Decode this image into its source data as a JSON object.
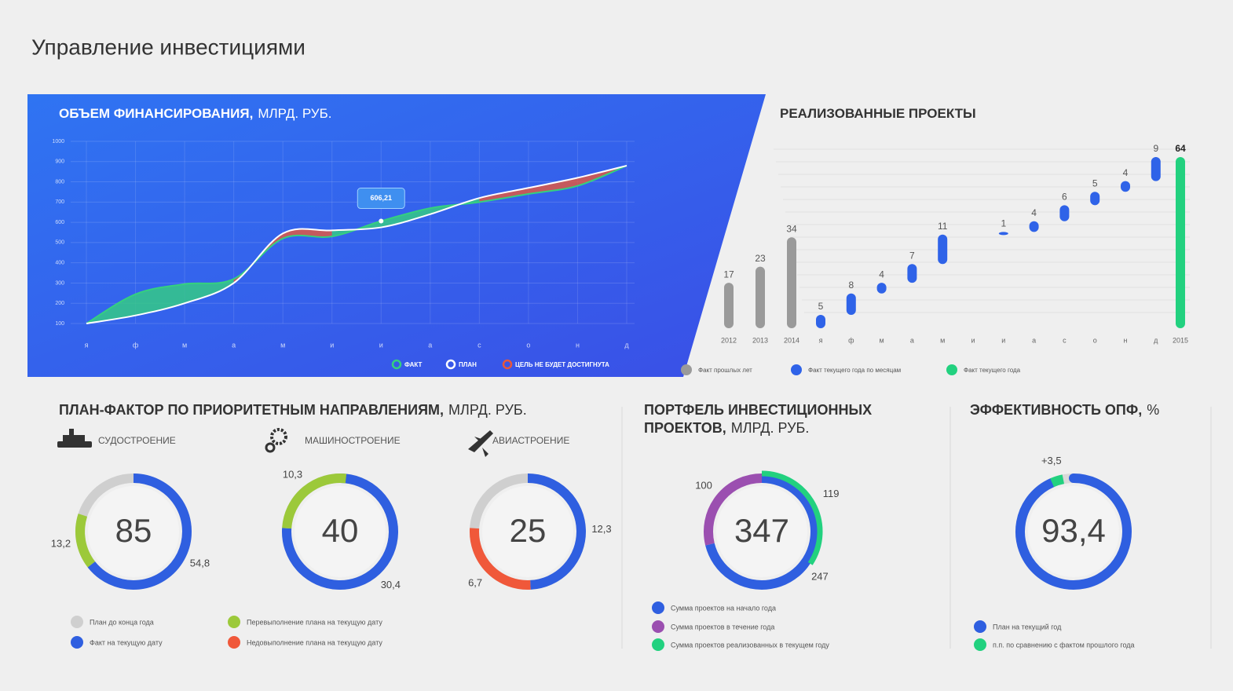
{
  "title": "Управление инвестициями",
  "chart_data": [
    {
      "type": "line",
      "title": "ОБЪЕМ ФИНАНСИРОВАНИЯ,",
      "title_unit": "МЛРД. РУБ.",
      "categories": [
        "я",
        "ф",
        "м",
        "а",
        "м",
        "и",
        "и",
        "а",
        "с",
        "о",
        "н",
        "д"
      ],
      "series": [
        {
          "name": "ФАКТ",
          "color": "#35d07f",
          "values": [
            100,
            245,
            295,
            320,
            520,
            530,
            606.21,
            670,
            700,
            740,
            780,
            880
          ]
        },
        {
          "name": "ПЛАН",
          "color": "#ffffff",
          "values": [
            100,
            140,
            200,
            300,
            545,
            560,
            575,
            640,
            720,
            770,
            820,
            880
          ]
        }
      ],
      "shortfall": {
        "name": "ЦЕЛЬ НЕ БУДЕТ ДОСТИГНУТА",
        "color": "#e8573a"
      },
      "annotation": "606,21",
      "ylim": [
        100,
        1000
      ],
      "yticks": [
        100,
        200,
        300,
        400,
        500,
        600,
        700,
        800,
        900,
        1000
      ],
      "grid": true
    },
    {
      "type": "bar",
      "title": "РЕАЛИЗОВАННЫЕ ПРОЕКТЫ",
      "categories": [
        "2012",
        "2013",
        "2014",
        "я",
        "ф",
        "м",
        "а",
        "м",
        "и",
        "и",
        "а",
        "с",
        "о",
        "н",
        "д",
        "2015"
      ],
      "series": [
        {
          "name": "Факт прошлых лет",
          "color": "#9a9a9a",
          "values": [
            17,
            23,
            34,
            null,
            null,
            null,
            null,
            null,
            null,
            null,
            null,
            null,
            null,
            null,
            null,
            null
          ]
        },
        {
          "name": "Факт текущего года по месяцам",
          "color": "#2f63e8",
          "stacked": true,
          "values": [
            null,
            null,
            null,
            5,
            8,
            4,
            7,
            11,
            null,
            1,
            4,
            6,
            5,
            4,
            9,
            null
          ]
        },
        {
          "name": "Факт текущего года",
          "color": "#22d17f",
          "values": [
            null,
            null,
            null,
            null,
            null,
            null,
            null,
            null,
            null,
            null,
            null,
            null,
            null,
            null,
            null,
            64
          ]
        }
      ]
    },
    {
      "type": "donut",
      "title": "ПЛАН-ФАКТОР ПО ПРИОРИТЕТНЫМ НАПРАВЛЕНИЯМ,",
      "title_unit": "МЛРД. РУБ.",
      "legend": [
        {
          "name": "План до конца года",
          "color": "#cfcfcf"
        },
        {
          "name": "Факт на текущую дату",
          "color": "#2f5fe0"
        },
        {
          "name": "Перевыполнение плана на текущую дату",
          "color": "#9cc93a"
        },
        {
          "name": "Недовыполнение плана на текущую дату",
          "color": "#f0583a"
        }
      ],
      "track": true,
      "rings": [
        {
          "name": "СУДОСТРОЕНИЕ",
          "center": 85,
          "values": [
            54.8,
            13.2
          ],
          "value_labels": [
            "54,8",
            "13,2"
          ],
          "colors": [
            "#2f5fe0",
            "#9cc93a"
          ]
        },
        {
          "name": "МАШИНОСТРОЕНИЕ",
          "center": 40,
          "values": [
            30.4,
            10.3
          ],
          "value_labels": [
            "30,4",
            "10,3"
          ],
          "colors": [
            "#2f5fe0",
            "#9cc93a"
          ]
        },
        {
          "name": "АВИАСТРОЕНИЕ",
          "center": 25,
          "values": [
            12.3,
            6.7
          ],
          "value_labels": [
            "12,3",
            "6,7"
          ],
          "colors": [
            "#2f5fe0",
            "#f0583a"
          ]
        }
      ]
    },
    {
      "type": "donut",
      "title_lines": [
        "ПОРТФЕЛЬ ИНВЕСТИЦИОННЫХ",
        "ПРОЕКТОВ,"
      ],
      "title_unit": "МЛРД. РУБ.",
      "legend": [
        {
          "name": "Сумма проектов на начало года",
          "color": "#2f5fe0"
        },
        {
          "name": "Сумма проектов в течение года",
          "color": "#9b4fb0"
        },
        {
          "name": "Сумма проектов реализованных в текущем году",
          "color": "#22d17f"
        }
      ],
      "outer_last": true,
      "rings": [
        {
          "center": 347,
          "values": [
            247,
            100,
            119
          ],
          "colors": [
            "#2f5fe0",
            "#9b4fb0",
            "#22d17f"
          ]
        }
      ]
    },
    {
      "type": "donut",
      "title": "ЭФФЕКТИВНОСТЬ ОПФ,",
      "title_unit": "%",
      "legend": [
        {
          "name": "План на текущий год",
          "color": "#2f5fe0"
        },
        {
          "name": "п.п. по сравнению с фактом прошлого года",
          "color": "#22d17f"
        }
      ],
      "track": true,
      "center_arc": true,
      "range": [
        0,
        100
      ],
      "rings": [
        {
          "center": 93.4,
          "center_label": "93,4",
          "center_color": "#2f5fe0",
          "values": [
            3.5
          ],
          "value_labels": [
            "+3,5"
          ],
          "colors": [
            "#22d17f"
          ]
        }
      ]
    }
  ]
}
